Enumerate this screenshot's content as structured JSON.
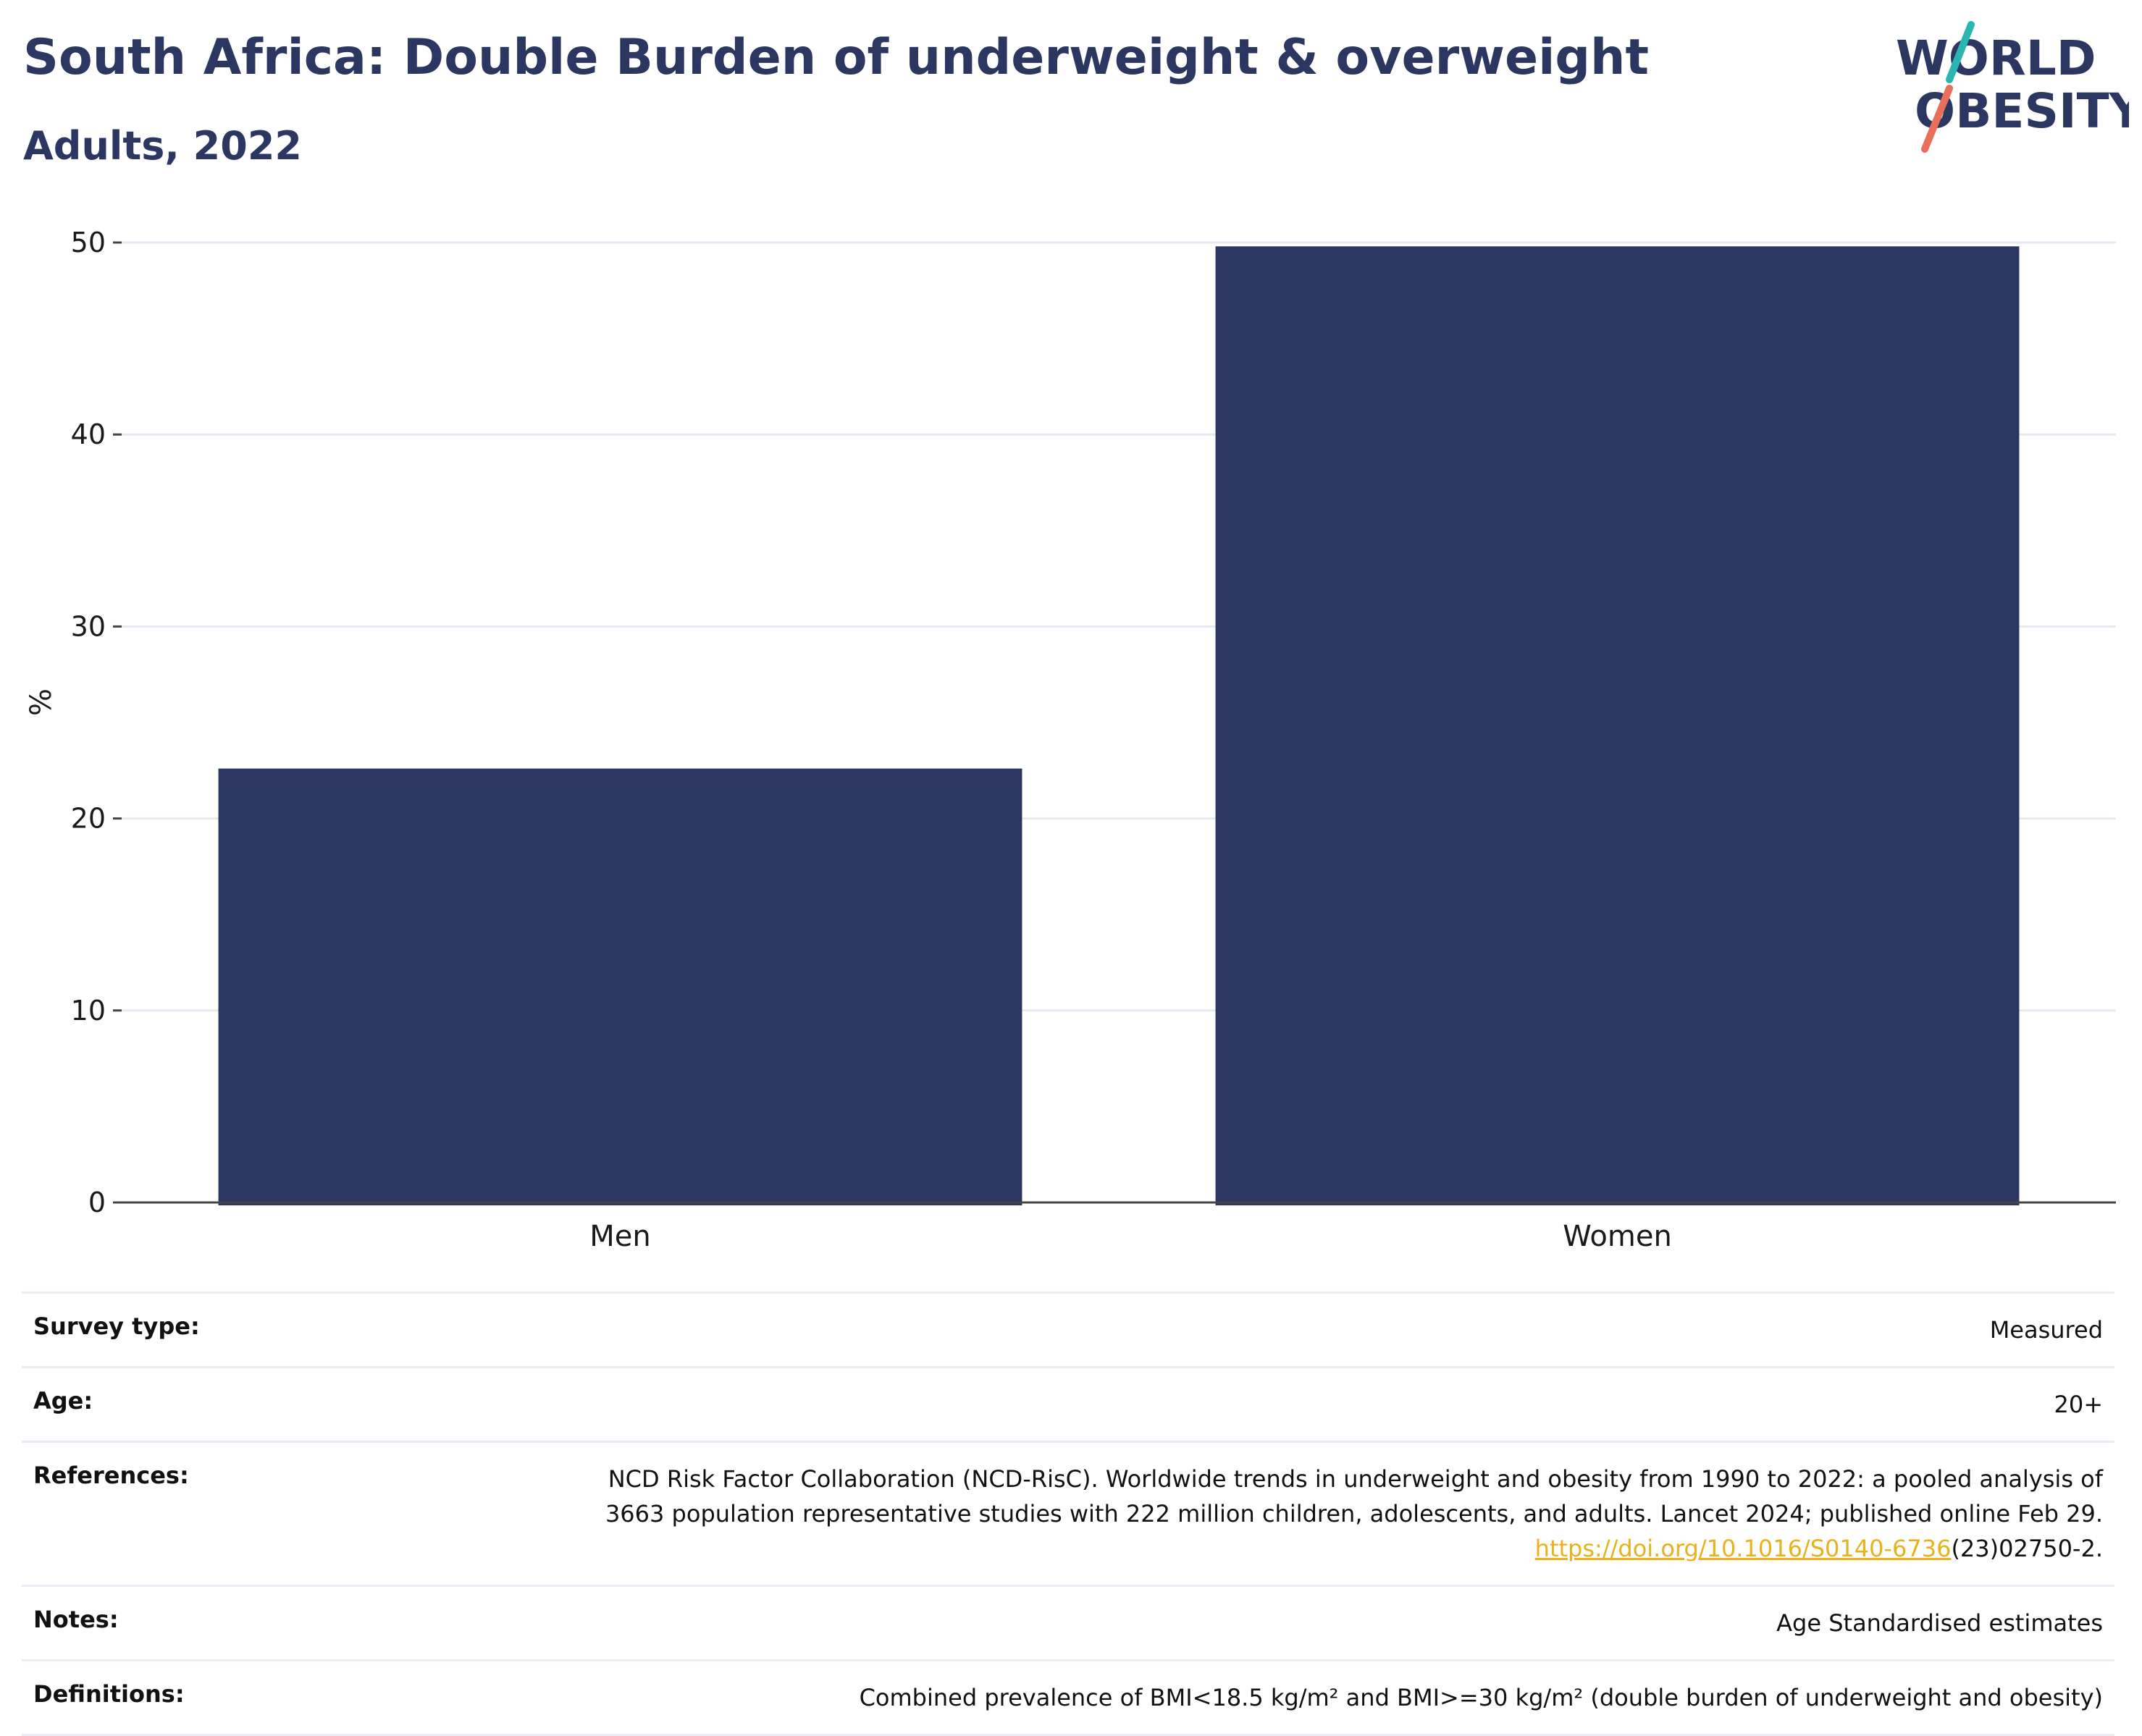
{
  "header": {
    "title": "South Africa: Double Burden of underweight & overweight",
    "subtitle": "Adults, 2022",
    "logo_line1": "WORLD",
    "logo_line2": "OBESITY"
  },
  "chart_data": {
    "type": "bar",
    "categories": [
      "Men",
      "Women"
    ],
    "values": [
      22.6,
      49.8
    ],
    "ylabel": "%",
    "ylim": [
      0,
      50
    ],
    "yticks": [
      0,
      10,
      20,
      30,
      40,
      50
    ],
    "grid": true,
    "bar_color": "#2b3661"
  },
  "meta": {
    "rows": [
      {
        "label": "Survey type:",
        "value": "Measured"
      },
      {
        "label": "Age:",
        "value": "20+"
      },
      {
        "label": "References:",
        "value_line1": "NCD Risk Factor Collaboration (NCD-RisC). Worldwide trends in underweight and obesity from 1990 to 2022: a pooled analysis of",
        "value_line2": "3663 population representative studies with 222 million children, adolescents, and adults. Lancet 2024; published online Feb 29.",
        "link": "https://doi.org/10.1016/S0140-6736",
        "link_suffix": "(23)02750-2."
      },
      {
        "label": "Notes:",
        "value": "Age Standardised estimates"
      },
      {
        "label": "Definitions:",
        "value": "Combined prevalence of BMI<18.5 kg/m² and BMI>=30 kg/m² (double burden of underweight and obesity)"
      }
    ]
  },
  "colors": {
    "navy": "#2b3661",
    "teal": "#2bb5b0",
    "coral": "#e8705a",
    "link": "#e8b21c"
  }
}
